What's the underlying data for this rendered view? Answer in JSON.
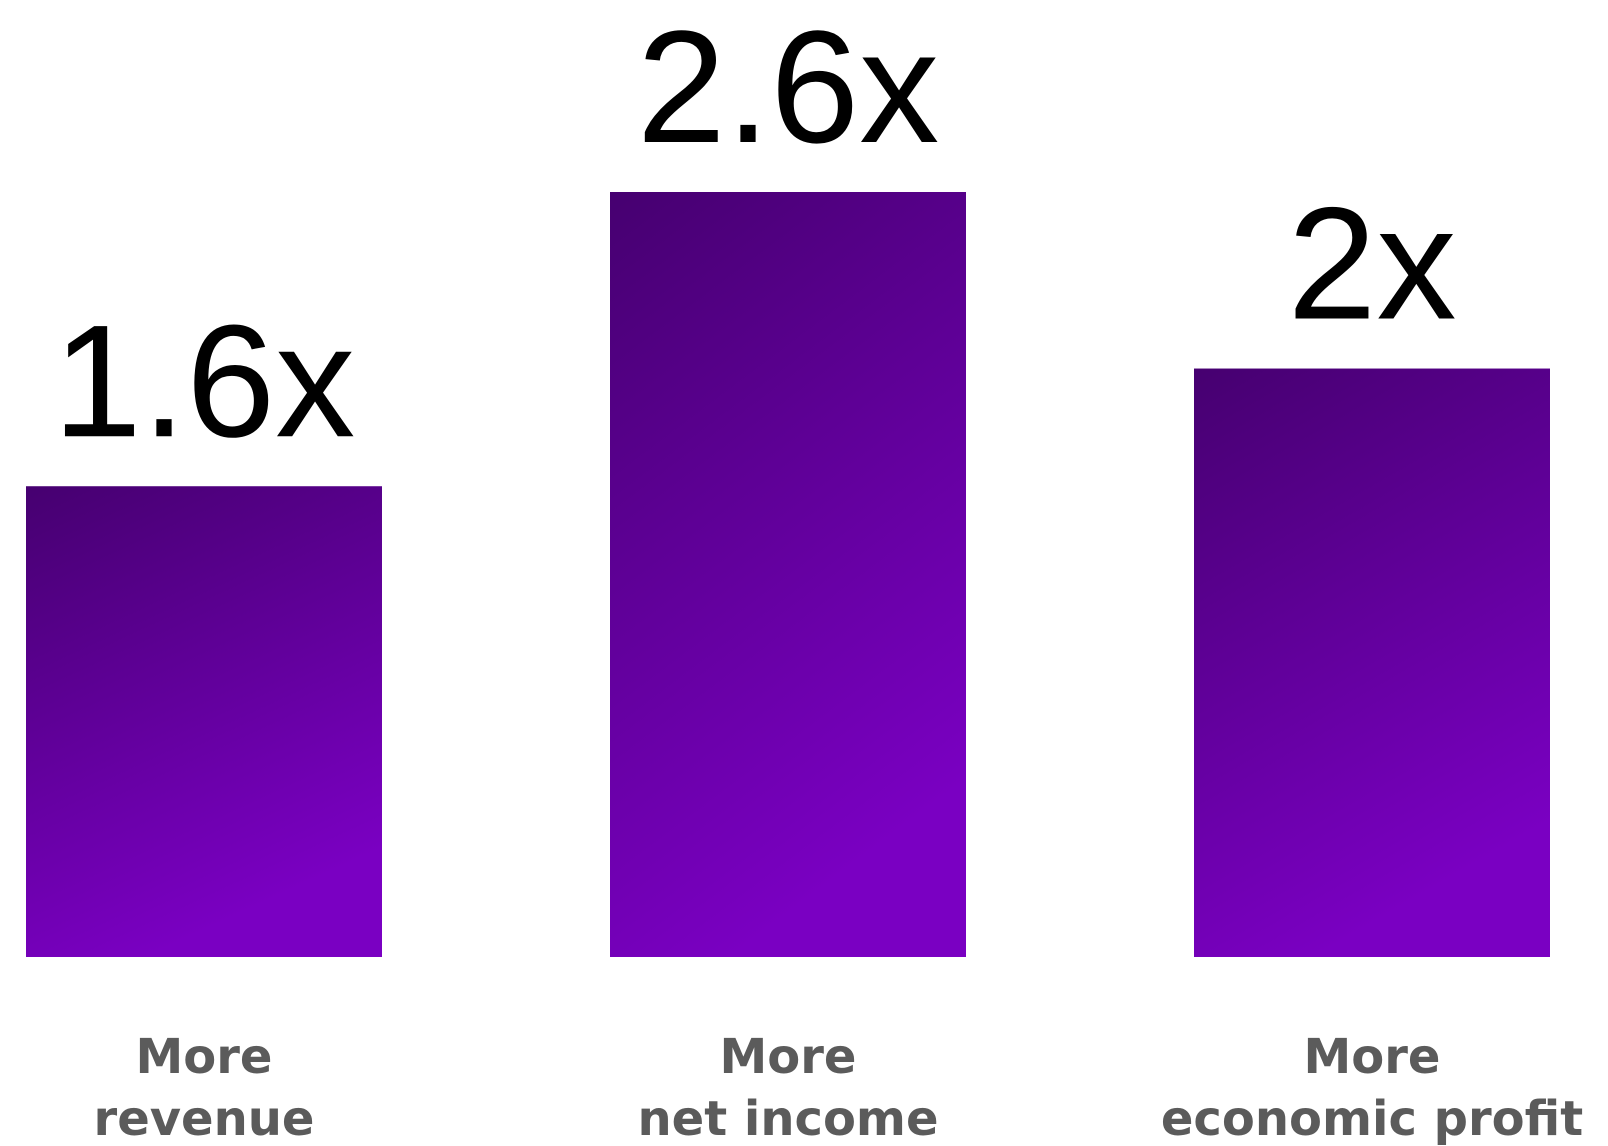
{
  "chart_data": {
    "type": "bar",
    "categories": [
      [
        "More",
        "revenue"
      ],
      [
        "More",
        "net income"
      ],
      [
        "More",
        "economic profit"
      ]
    ],
    "values": [
      1.6,
      2.6,
      2
    ],
    "value_labels": [
      "1.6x",
      "2.6x",
      "2x"
    ],
    "ylim": [
      0,
      2.6
    ],
    "grid": false,
    "legend": "none",
    "colors": {
      "bar_top": "#460070",
      "bar_bottom": "#7a00c2",
      "value_text": "#000000",
      "category_text": "#5b5b5b"
    }
  }
}
